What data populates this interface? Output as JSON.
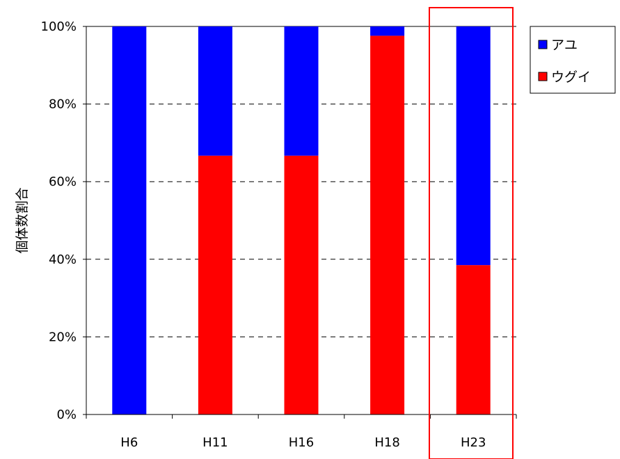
{
  "chart_data": {
    "type": "bar",
    "stacked": "percent",
    "categories": [
      "H6",
      "H11",
      "H16",
      "H18",
      "H23"
    ],
    "series": [
      {
        "name": "ウグイ",
        "color": "#ff0000",
        "values": [
          0,
          66.7,
          66.7,
          97.6,
          38.5
        ]
      },
      {
        "name": "アユ",
        "color": "#0000ff",
        "values": [
          100,
          33.3,
          33.3,
          2.4,
          61.5
        ]
      }
    ],
    "legend_order": [
      "アユ",
      "ウグイ"
    ],
    "ylabel": "個体数割合",
    "ylim": [
      0,
      100
    ],
    "yticks": [
      "0%",
      "20%",
      "40%",
      "60%",
      "80%",
      "100%"
    ],
    "grid": "dashed horizontal",
    "legend_position": "right",
    "highlight": {
      "category": "H23",
      "color": "#ff0000"
    }
  }
}
